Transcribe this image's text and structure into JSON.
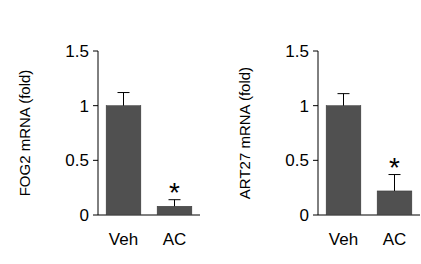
{
  "chart_data": [
    {
      "type": "bar",
      "y_label": "FOG2 mRNA (fold)",
      "categories": [
        "Veh",
        "AC"
      ],
      "values": [
        1,
        0.08
      ],
      "errors": [
        0.12,
        0.06
      ],
      "color": "#505050",
      "ylim": [
        0,
        1.5
      ],
      "yticks": [
        0,
        0.5,
        1,
        1.5
      ],
      "grid": false,
      "annotations": [
        {
          "text": "*",
          "category": "AC"
        }
      ]
    },
    {
      "type": "bar",
      "y_label": "ART27 mRNA (fold)",
      "categories": [
        "Veh",
        "AC"
      ],
      "values": [
        1,
        0.22
      ],
      "errors": [
        0.11,
        0.15
      ],
      "color": "#505050",
      "ylim": [
        0,
        1.5
      ],
      "yticks": [
        0,
        0.5,
        1,
        1.5
      ],
      "grid": false,
      "annotations": [
        {
          "text": "*",
          "category": "AC"
        }
      ]
    }
  ]
}
